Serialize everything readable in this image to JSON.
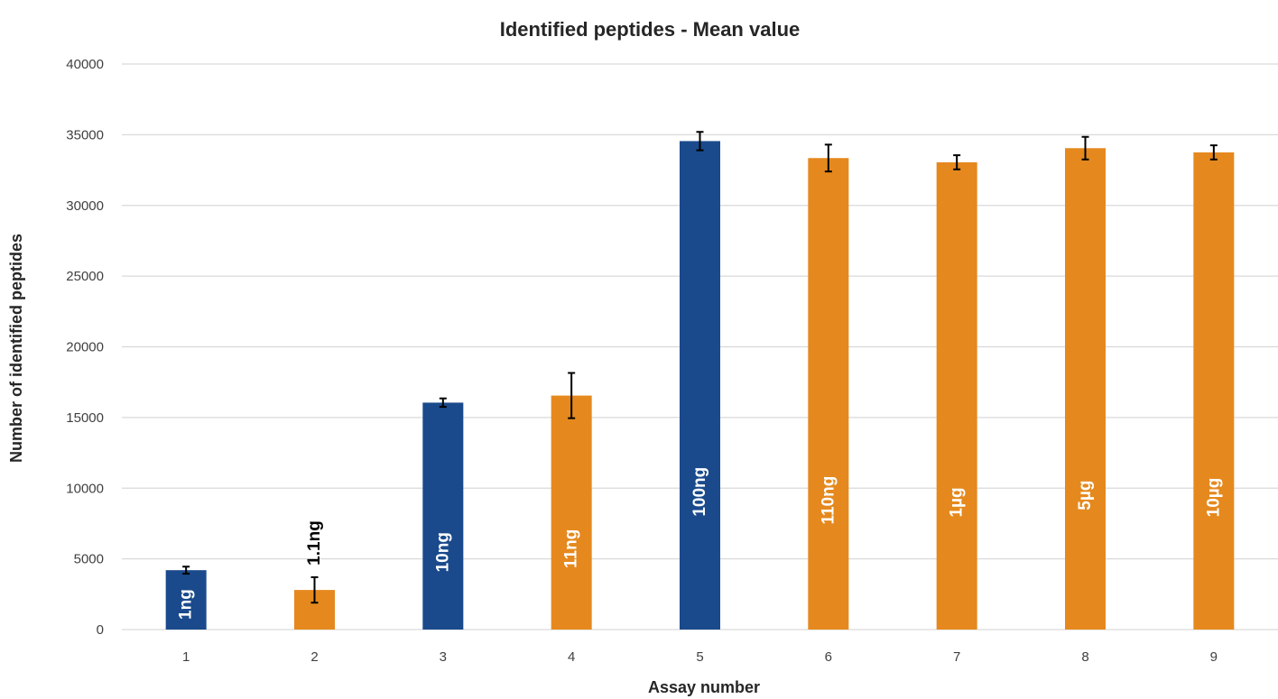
{
  "chart_data": {
    "type": "bar",
    "title": "Identified peptides - Mean value",
    "xlabel": "Assay number",
    "ylabel": "Number of identified peptides",
    "categories": [
      "1",
      "2",
      "3",
      "4",
      "5",
      "6",
      "7",
      "8",
      "9"
    ],
    "values": [
      4200,
      2800,
      16050,
      16550,
      34550,
      33350,
      33050,
      34050,
      33750
    ],
    "error": [
      250,
      900,
      300,
      1600,
      650,
      950,
      500,
      800,
      500
    ],
    "bar_labels": [
      "1ng",
      "1.1ng",
      "10ng",
      "11ng",
      "100ng",
      "110ng",
      "1µg",
      "5µg",
      "10µg"
    ],
    "bar_label_outside": [
      false,
      true,
      false,
      false,
      false,
      false,
      false,
      false,
      false
    ],
    "bar_colors": [
      "#1a4a8c",
      "#e5891e",
      "#1a4a8c",
      "#e5891e",
      "#1a4a8c",
      "#e5891e",
      "#e5891e",
      "#e5891e",
      "#e5891e"
    ],
    "ylim": [
      0,
      40000
    ],
    "yticks": [
      0,
      5000,
      10000,
      15000,
      20000,
      25000,
      30000,
      35000,
      40000
    ],
    "grid": true,
    "legend": "none",
    "colors": {
      "blue": "#1a4a8c",
      "orange": "#e5891e",
      "grid": "#d9d9d9",
      "label_on_bar": "#ffffff",
      "label_outside": "#000000",
      "error_bar": "#000000"
    }
  }
}
